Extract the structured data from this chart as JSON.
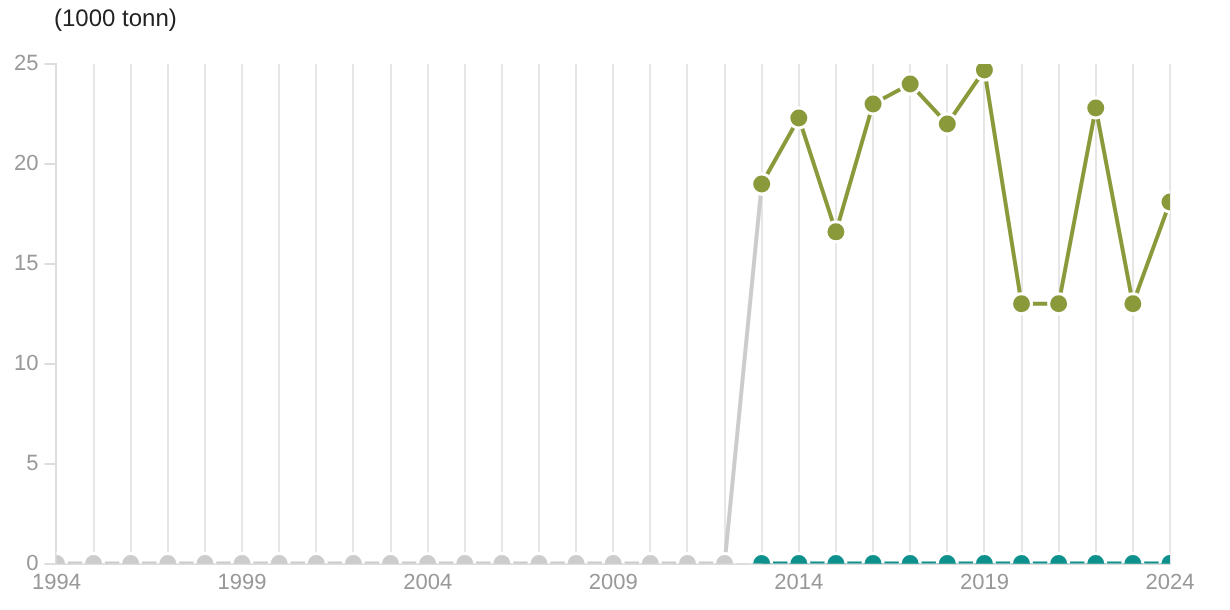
{
  "chart_data": {
    "type": "line",
    "ylabel": "(1000 tonn)",
    "series": [
      {
        "color": "#cccccc",
        "x": [
          1994,
          1995,
          1996,
          1997,
          1998,
          1999,
          2000,
          2001,
          2002,
          2003,
          2004,
          2005,
          2006,
          2007,
          2008,
          2009,
          2010,
          2011,
          2012,
          2013
        ],
        "values": [
          0,
          0,
          0,
          0,
          0,
          0,
          0,
          0,
          0,
          0,
          0,
          0,
          0,
          0,
          0,
          0,
          0,
          0,
          0,
          19
        ]
      },
      {
        "color": "#0e918c",
        "x": [
          2013,
          2014,
          2015,
          2016,
          2017,
          2018,
          2019,
          2020,
          2021,
          2022,
          2023,
          2024
        ],
        "values": [
          0,
          0,
          0,
          0,
          0,
          0,
          0,
          0,
          0,
          0,
          0,
          0
        ]
      },
      {
        "color": "#8a9a3b",
        "x": [
          2013,
          2014,
          2015,
          2016,
          2017,
          2018,
          2019,
          2020,
          2021,
          2022,
          2023,
          2024
        ],
        "values": [
          19,
          22.3,
          16.6,
          23,
          24,
          22,
          24.7,
          13,
          13,
          22.8,
          13,
          18.1
        ]
      }
    ],
    "xlim": [
      1994,
      2024
    ],
    "xticks": [
      1994,
      {
        "value": 1995,
        "label": null
      },
      {
        "value": 1996,
        "label": null
      },
      {
        "value": 1997,
        "label": null
      },
      {
        "value": 1998,
        "label": null
      },
      1999,
      {
        "value": 2000,
        "label": null
      },
      {
        "value": 2001,
        "label": null
      },
      {
        "value": 2002,
        "label": null
      },
      {
        "value": 2003,
        "label": null
      },
      2004,
      {
        "value": 2005,
        "label": null
      },
      {
        "value": 2006,
        "label": null
      },
      {
        "value": 2007,
        "label": null
      },
      {
        "value": 2008,
        "label": null
      },
      2009,
      {
        "value": 2010,
        "label": null
      },
      {
        "value": 2011,
        "label": null
      },
      {
        "value": 2012,
        "label": null
      },
      {
        "value": 2013,
        "label": null
      },
      2014,
      {
        "value": 2015,
        "label": null
      },
      {
        "value": 2016,
        "label": null
      },
      {
        "value": 2017,
        "label": null
      },
      {
        "value": 2018,
        "label": null
      },
      2019,
      {
        "value": 2020,
        "label": null
      },
      {
        "value": 2021,
        "label": null
      },
      {
        "value": 2022,
        "label": null
      },
      {
        "value": 2023,
        "label": null
      },
      2024
    ],
    "ylim": [
      0,
      25
    ],
    "yticks": [
      0,
      5,
      10,
      15,
      20,
      25
    ],
    "grid": "x",
    "legend": false,
    "marker": "circle",
    "line_style": "solid"
  }
}
